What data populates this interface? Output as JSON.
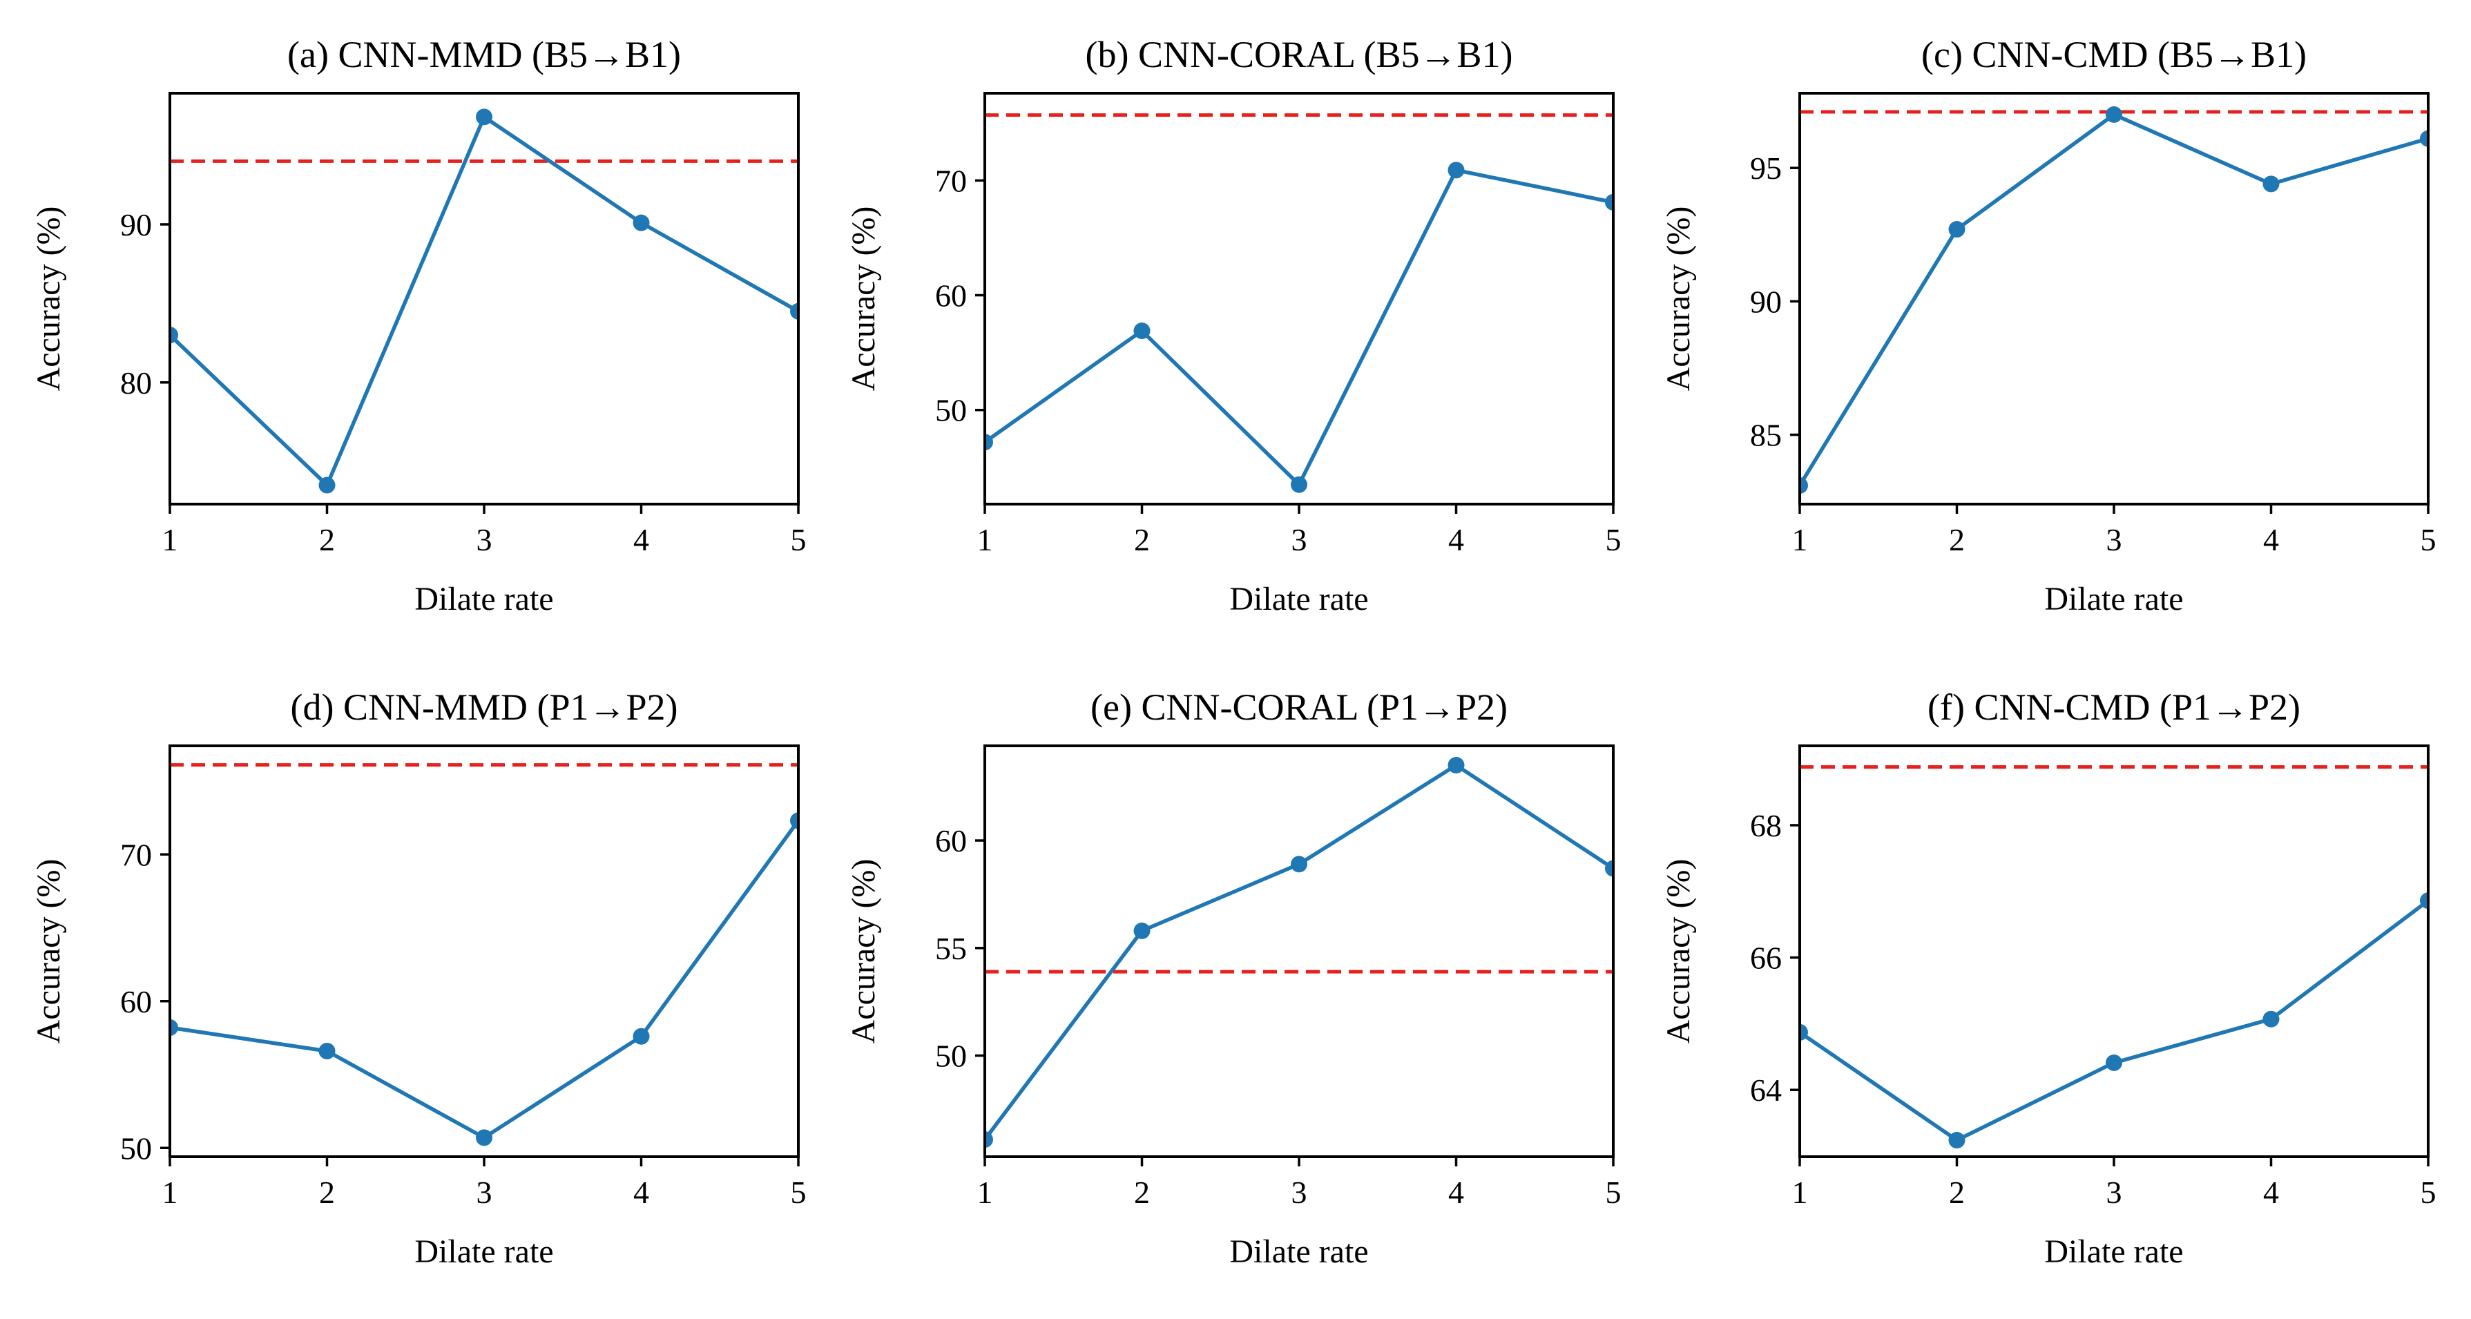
{
  "colors": {
    "series": "#1f77b4",
    "reference": "#e8201c",
    "axis": "#000000",
    "background": "#ffffff"
  },
  "chart_data": [
    {
      "type": "line",
      "title": "(a) CNN-MMD (B5→B1)",
      "xlabel": "Dilate rate",
      "ylabel": "Accuracy (%)",
      "x": [
        1,
        2,
        3,
        4,
        5
      ],
      "xlim": [
        1,
        5
      ],
      "ylim": [
        72.3,
        98.3
      ],
      "yticks": [
        80,
        90
      ],
      "series": [
        {
          "values": [
            83.0,
            73.5,
            96.8,
            90.1,
            84.5
          ]
        }
      ],
      "reference_line": 94.0,
      "grid": false,
      "legend": "none"
    },
    {
      "type": "line",
      "title": "(b) CNN-CORAL (B5→B1)",
      "xlabel": "Dilate rate",
      "ylabel": "Accuracy (%)",
      "x": [
        1,
        2,
        3,
        4,
        5
      ],
      "xlim": [
        1,
        5
      ],
      "ylim": [
        41.8,
        77.6
      ],
      "yticks": [
        50,
        60,
        70
      ],
      "series": [
        {
          "values": [
            47.2,
            56.9,
            43.5,
            70.9,
            68.1
          ]
        }
      ],
      "reference_line": 75.7,
      "grid": false,
      "legend": "none"
    },
    {
      "type": "line",
      "title": "(c) CNN-CMD (B5→B1)",
      "xlabel": "Dilate rate",
      "ylabel": "Accuracy (%)",
      "x": [
        1,
        2,
        3,
        4,
        5
      ],
      "xlim": [
        1,
        5
      ],
      "ylim": [
        82.4,
        97.8
      ],
      "yticks": [
        85,
        90,
        95
      ],
      "series": [
        {
          "values": [
            83.1,
            92.7,
            97.0,
            94.4,
            96.1
          ]
        }
      ],
      "reference_line": 97.1,
      "grid": false,
      "legend": "none"
    },
    {
      "type": "line",
      "title": "(d) CNN-MMD (P1→P2)",
      "xlabel": "Dilate rate",
      "ylabel": "Accuracy (%)",
      "x": [
        1,
        2,
        3,
        4,
        5
      ],
      "xlim": [
        1,
        5
      ],
      "ylim": [
        49.4,
        77.4
      ],
      "yticks": [
        50,
        60,
        70
      ],
      "series": [
        {
          "values": [
            58.2,
            56.6,
            50.7,
            57.6,
            72.3
          ]
        }
      ],
      "reference_line": 76.1,
      "grid": false,
      "legend": "none"
    },
    {
      "type": "line",
      "title": "(e) CNN-CORAL (P1→P2)",
      "xlabel": "Dilate rate",
      "ylabel": "Accuracy (%)",
      "x": [
        1,
        2,
        3,
        4,
        5
      ],
      "xlim": [
        1,
        5
      ],
      "ylim": [
        45.3,
        64.4
      ],
      "yticks": [
        50,
        55,
        60
      ],
      "series": [
        {
          "values": [
            46.1,
            55.8,
            58.9,
            63.5,
            58.7
          ]
        }
      ],
      "reference_line": 53.9,
      "grid": false,
      "legend": "none"
    },
    {
      "type": "line",
      "title": "(f) CNN-CMD (P1→P2)",
      "xlabel": "Dilate rate",
      "ylabel": "Accuracy (%)",
      "x": [
        1,
        2,
        3,
        4,
        5
      ],
      "xlim": [
        1,
        5
      ],
      "ylim": [
        62.99,
        69.2
      ],
      "yticks": [
        64,
        66,
        68
      ],
      "series": [
        {
          "values": [
            64.87,
            63.24,
            64.41,
            65.07,
            66.86
          ]
        }
      ],
      "reference_line": 68.88,
      "grid": false,
      "legend": "none"
    }
  ]
}
